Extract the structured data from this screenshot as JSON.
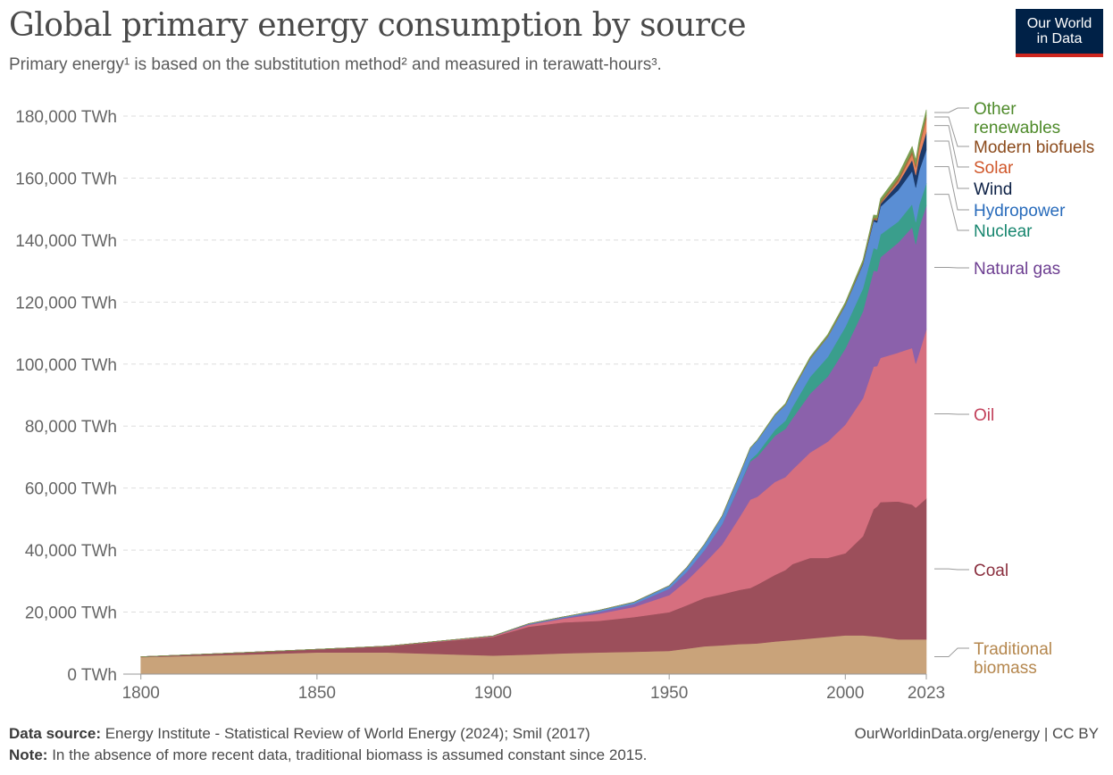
{
  "header": {
    "title": "Global primary energy consumption by source",
    "subtitle": "Primary energy¹ is based on the substitution method² and measured in terawatt-hours³.",
    "logo_line1": "Our World",
    "logo_line2": "in Data"
  },
  "footer": {
    "source_label": "Data source:",
    "source_text": "Energy Institute - Statistical Review of World Energy (2024); Smil (2017)",
    "note_label": "Note:",
    "note_text": "In the absence of more recent data, traditional biomass is assumed constant since 2015.",
    "url": "OurWorldinData.org/energy | CC BY"
  },
  "chart_data": {
    "type": "area",
    "stacked": true,
    "title": "Global primary energy consumption by source",
    "unit": "TWh",
    "ylim": [
      0,
      180000
    ],
    "xlim": [
      1795,
      2023
    ],
    "ytick_values": [
      0,
      20000,
      40000,
      60000,
      80000,
      100000,
      120000,
      140000,
      160000,
      180000
    ],
    "ytick_labels": [
      "0 TWh",
      "20,000 TWh",
      "40,000 TWh",
      "60,000 TWh",
      "80,000 TWh",
      "100,000 TWh",
      "120,000 TWh",
      "140,000 TWh",
      "160,000 TWh",
      "180,000 TWh"
    ],
    "xtick_values": [
      1800,
      1850,
      1900,
      1950,
      2000,
      2023
    ],
    "xtick_labels": [
      "1800",
      "1850",
      "1900",
      "1950",
      "2000",
      "2023"
    ],
    "grid": true,
    "legend": "right, labels at line ends",
    "x": [
      1800,
      1830,
      1850,
      1870,
      1900,
      1910,
      1920,
      1930,
      1940,
      1950,
      1955,
      1960,
      1965,
      1970,
      1973,
      1975,
      1980,
      1983,
      1985,
      1990,
      1995,
      2000,
      2005,
      2008,
      2009,
      2010,
      2015,
      2019,
      2020,
      2021,
      2023
    ],
    "series": [
      {
        "name": "Traditional biomass",
        "color": "#c9a37a",
        "label_color": "#b5874e",
        "values": [
          5500,
          6300,
          7000,
          7000,
          6000,
          6300,
          6700,
          7000,
          7200,
          7500,
          8200,
          9000,
          9300,
          9700,
          9800,
          9900,
          10500,
          10800,
          11000,
          11500,
          12000,
          12500,
          12500,
          12200,
          12100,
          12000,
          11200,
          11200,
          11200,
          11200,
          11200
        ]
      },
      {
        "name": "Coal",
        "color": "#9c4f5b",
        "label_color": "#8a2f3e",
        "values": [
          100,
          700,
          1000,
          2000,
          6000,
          9000,
          10000,
          10200,
          11200,
          12500,
          14000,
          15600,
          16500,
          17500,
          18000,
          19000,
          21500,
          22800,
          24500,
          26000,
          25500,
          26500,
          32000,
          41000,
          42000,
          43500,
          44500,
          43500,
          42500,
          43500,
          45500
        ]
      },
      {
        "name": "Oil",
        "color": "#d66f7f",
        "label_color": "#c2405a",
        "values": [
          0,
          0,
          0,
          30,
          200,
          600,
          1200,
          2300,
          3300,
          5500,
          8000,
          11200,
          16000,
          23500,
          28500,
          28300,
          30000,
          30000,
          30500,
          34000,
          37500,
          41500,
          44500,
          46000,
          45300,
          46500,
          48000,
          50500,
          46500,
          49000,
          54500
        ]
      },
      {
        "name": "Natural gas",
        "color": "#8b61ab",
        "label_color": "#6d3e91",
        "values": [
          0,
          0,
          0,
          0,
          60,
          180,
          300,
          600,
          900,
          2100,
          2900,
          4200,
          6500,
          10200,
          12300,
          13000,
          14900,
          15500,
          16500,
          19000,
          21000,
          24500,
          28000,
          31000,
          30500,
          32500,
          35500,
          39000,
          38500,
          40500,
          40000
        ]
      },
      {
        "name": "Nuclear",
        "color": "#3a9e8c",
        "label_color": "#18866f",
        "values": [
          0,
          0,
          0,
          0,
          0,
          0,
          0,
          0,
          0,
          0,
          0,
          0,
          70,
          200,
          550,
          1000,
          1900,
          2700,
          3700,
          5400,
          6300,
          7000,
          7400,
          7300,
          7100,
          7300,
          6800,
          7400,
          7100,
          7300,
          7100
        ]
      },
      {
        "name": "Hydropower",
        "color": "#5a8ed4",
        "label_color": "#286bbb",
        "values": [
          0,
          0,
          0,
          0,
          60,
          150,
          300,
          450,
          650,
          950,
          1350,
          1900,
          2600,
          3400,
          3800,
          4200,
          4700,
          5100,
          5300,
          5800,
          6500,
          7000,
          7800,
          8600,
          8700,
          9000,
          10100,
          10700,
          11200,
          11000,
          10800
        ]
      },
      {
        "name": "Wind",
        "color": "#1b3a6b",
        "label_color": "#0b1f44",
        "values": [
          0,
          0,
          0,
          0,
          0,
          0,
          0,
          0,
          0,
          0,
          0,
          0,
          0,
          0,
          0,
          0,
          0,
          0,
          0,
          10,
          20,
          80,
          270,
          560,
          690,
          900,
          2200,
          3600,
          4000,
          4600,
          5700
        ]
      },
      {
        "name": "Solar",
        "color": "#e8845c",
        "label_color": "#d0572a",
        "values": [
          0,
          0,
          0,
          0,
          0,
          0,
          0,
          0,
          0,
          0,
          0,
          0,
          0,
          0,
          0,
          0,
          0,
          0,
          0,
          0,
          0,
          3,
          10,
          35,
          55,
          85,
          680,
          1800,
          2300,
          2800,
          4300
        ]
      },
      {
        "name": "Modern biofuels",
        "color": "#a76a3c",
        "label_color": "#8b4a1b",
        "values": [
          0,
          0,
          0,
          0,
          0,
          0,
          0,
          0,
          0,
          0,
          0,
          0,
          0,
          0,
          0,
          0,
          80,
          110,
          130,
          150,
          170,
          180,
          300,
          550,
          600,
          650,
          850,
          1050,
          980,
          1050,
          1200
        ]
      },
      {
        "name": "Other renewables",
        "color": "#7a9e50",
        "label_color": "#4e8a2a",
        "values": [
          0,
          0,
          0,
          0,
          0,
          0,
          0,
          0,
          0,
          0,
          0,
          20,
          40,
          80,
          100,
          120,
          220,
          280,
          350,
          450,
          550,
          650,
          750,
          850,
          900,
          950,
          1200,
          1500,
          1550,
          1600,
          1700
        ]
      }
    ],
    "legend_labels": [
      {
        "lines": [
          "Other",
          "renewables"
        ],
        "series": "Other renewables"
      },
      {
        "lines": [
          "Modern biofuels"
        ],
        "series": "Modern biofuels"
      },
      {
        "lines": [
          "Solar"
        ],
        "series": "Solar"
      },
      {
        "lines": [
          "Wind"
        ],
        "series": "Wind"
      },
      {
        "lines": [
          "Hydropower"
        ],
        "series": "Hydropower"
      },
      {
        "lines": [
          "Nuclear"
        ],
        "series": "Nuclear"
      },
      {
        "lines": [
          "Natural gas"
        ],
        "series": "Natural gas"
      },
      {
        "lines": [
          "Oil"
        ],
        "series": "Oil"
      },
      {
        "lines": [
          "Coal"
        ],
        "series": "Coal"
      },
      {
        "lines": [
          "Traditional",
          "biomass"
        ],
        "series": "Traditional biomass"
      }
    ]
  }
}
